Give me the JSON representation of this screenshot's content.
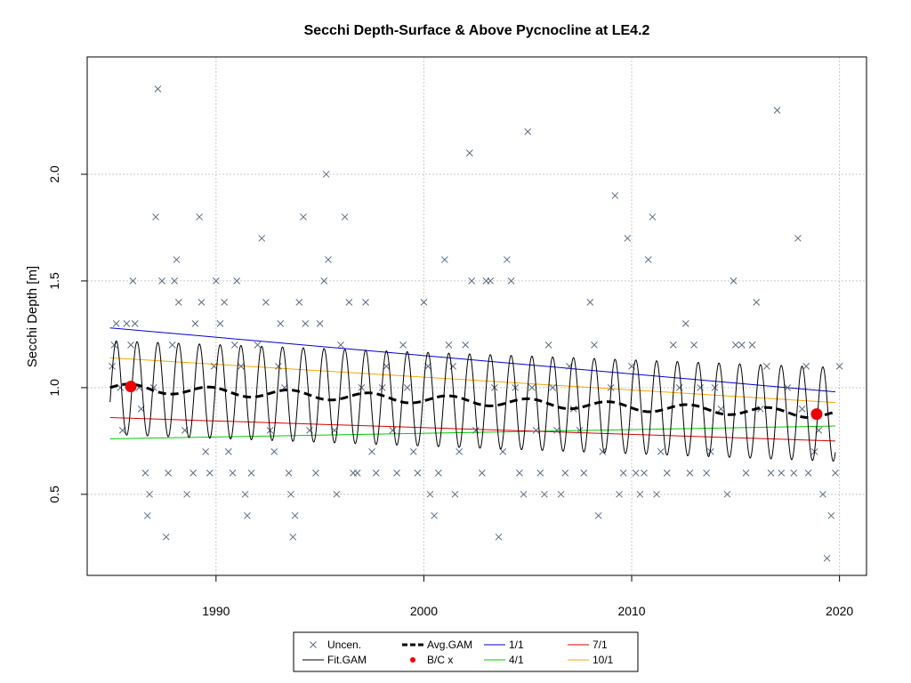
{
  "chart_data": {
    "type": "line",
    "title": "Secchi Depth-Surface & Above Pycnocline at LE4.2",
    "xlabel": "",
    "ylabel": "Secchi Depth [m]",
    "xlim": [
      1983.8,
      2021.3
    ],
    "ylim": [
      0.12,
      2.55
    ],
    "x_ticks": [
      "1990",
      "2000",
      "2010",
      "2020"
    ],
    "y_ticks": [
      "0.5",
      "1.0",
      "1.5",
      "2.0"
    ],
    "grid": true,
    "legend_position": "bottom-center",
    "legend": [
      {
        "label": "Uncen.",
        "kind": "cross",
        "color": "#5a6b82"
      },
      {
        "label": "Fit.GAM",
        "kind": "line",
        "color": "#000000"
      },
      {
        "label": "Avg.GAM",
        "kind": "dashed-thick",
        "color": "#000000"
      },
      {
        "label": "B/C x",
        "kind": "dot",
        "color": "#ee0000"
      },
      {
        "label": "1/1",
        "kind": "line",
        "color": "#0000cc"
      },
      {
        "label": "4/1",
        "kind": "line",
        "color": "#00cc00"
      },
      {
        "label": "7/1",
        "kind": "line",
        "color": "#dd0000"
      },
      {
        "label": "10/1",
        "kind": "line",
        "color": "#ffa500"
      }
    ],
    "observations": [
      [
        1985.0,
        1.1
      ],
      [
        1985.1,
        1.2
      ],
      [
        1985.2,
        1.3
      ],
      [
        1985.4,
        1.0
      ],
      [
        1985.5,
        0.8
      ],
      [
        1985.7,
        1.3
      ],
      [
        1985.9,
        1.2
      ],
      [
        1986.0,
        1.5
      ],
      [
        1986.1,
        1.3
      ],
      [
        1986.3,
        1.0
      ],
      [
        1986.4,
        0.9
      ],
      [
        1986.6,
        0.6
      ],
      [
        1986.7,
        0.4
      ],
      [
        1986.8,
        0.5
      ],
      [
        1987.0,
        1.0
      ],
      [
        1987.1,
        1.8
      ],
      [
        1987.2,
        2.4
      ],
      [
        1987.4,
        1.5
      ],
      [
        1987.6,
        0.3
      ],
      [
        1987.7,
        0.6
      ],
      [
        1987.9,
        1.2
      ],
      [
        1988.0,
        1.5
      ],
      [
        1988.1,
        1.6
      ],
      [
        1988.2,
        1.4
      ],
      [
        1988.5,
        0.8
      ],
      [
        1988.6,
        0.5
      ],
      [
        1988.9,
        0.6
      ],
      [
        1989.0,
        1.3
      ],
      [
        1989.2,
        1.8
      ],
      [
        1989.3,
        1.4
      ],
      [
        1989.5,
        0.7
      ],
      [
        1989.7,
        0.6
      ],
      [
        1989.9,
        1.1
      ],
      [
        1990.0,
        1.5
      ],
      [
        1990.2,
        1.3
      ],
      [
        1990.4,
        1.4
      ],
      [
        1990.6,
        0.7
      ],
      [
        1990.8,
        0.6
      ],
      [
        1990.9,
        1.2
      ],
      [
        1991.0,
        1.5
      ],
      [
        1991.2,
        1.1
      ],
      [
        1991.4,
        0.5
      ],
      [
        1991.5,
        0.4
      ],
      [
        1991.7,
        0.6
      ],
      [
        1992.0,
        1.2
      ],
      [
        1992.2,
        1.7
      ],
      [
        1992.4,
        1.4
      ],
      [
        1992.6,
        0.8
      ],
      [
        1992.8,
        0.7
      ],
      [
        1993.0,
        1.1
      ],
      [
        1993.1,
        1.3
      ],
      [
        1993.3,
        1.0
      ],
      [
        1993.5,
        0.6
      ],
      [
        1993.6,
        0.5
      ],
      [
        1993.7,
        0.3
      ],
      [
        1993.8,
        0.4
      ],
      [
        1994.0,
        1.4
      ],
      [
        1994.2,
        1.8
      ],
      [
        1994.3,
        1.3
      ],
      [
        1994.5,
        0.8
      ],
      [
        1994.8,
        0.6
      ],
      [
        1995.0,
        1.3
      ],
      [
        1995.2,
        1.5
      ],
      [
        1995.3,
        2.0
      ],
      [
        1995.4,
        1.6
      ],
      [
        1995.7,
        0.8
      ],
      [
        1995.8,
        0.5
      ],
      [
        1996.0,
        1.2
      ],
      [
        1996.2,
        1.8
      ],
      [
        1996.4,
        1.4
      ],
      [
        1996.6,
        0.6
      ],
      [
        1996.8,
        0.6
      ],
      [
        1997.0,
        1.0
      ],
      [
        1997.2,
        1.4
      ],
      [
        1997.5,
        0.7
      ],
      [
        1997.7,
        0.6
      ],
      [
        1998.0,
        1.0
      ],
      [
        1998.2,
        1.1
      ],
      [
        1998.5,
        0.8
      ],
      [
        1998.7,
        0.6
      ],
      [
        1999.0,
        1.2
      ],
      [
        1999.2,
        1.0
      ],
      [
        1999.5,
        0.7
      ],
      [
        1999.7,
        0.6
      ],
      [
        2000.0,
        1.4
      ],
      [
        2000.2,
        1.1
      ],
      [
        2000.3,
        0.5
      ],
      [
        2000.5,
        0.4
      ],
      [
        2000.7,
        0.6
      ],
      [
        2001.0,
        1.6
      ],
      [
        2001.2,
        1.2
      ],
      [
        2001.4,
        1.1
      ],
      [
        2001.5,
        0.5
      ],
      [
        2001.7,
        0.7
      ],
      [
        2002.0,
        1.2
      ],
      [
        2002.2,
        2.1
      ],
      [
        2002.3,
        1.5
      ],
      [
        2002.5,
        0.8
      ],
      [
        2002.8,
        0.6
      ],
      [
        2003.0,
        1.5
      ],
      [
        2003.2,
        1.5
      ],
      [
        2003.4,
        1.0
      ],
      [
        2003.6,
        0.3
      ],
      [
        2003.8,
        0.7
      ],
      [
        2004.0,
        1.6
      ],
      [
        2004.2,
        1.5
      ],
      [
        2004.4,
        1.0
      ],
      [
        2004.6,
        0.6
      ],
      [
        2004.8,
        0.5
      ],
      [
        2005.0,
        2.2
      ],
      [
        2005.2,
        1.0
      ],
      [
        2005.4,
        0.8
      ],
      [
        2005.6,
        0.6
      ],
      [
        2005.8,
        0.5
      ],
      [
        2006.0,
        1.2
      ],
      [
        2006.2,
        1.0
      ],
      [
        2006.4,
        0.8
      ],
      [
        2006.6,
        0.5
      ],
      [
        2006.8,
        0.6
      ],
      [
        2007.0,
        1.1
      ],
      [
        2007.2,
        0.9
      ],
      [
        2007.5,
        0.8
      ],
      [
        2007.7,
        0.6
      ],
      [
        2008.0,
        1.4
      ],
      [
        2008.2,
        1.2
      ],
      [
        2008.4,
        0.4
      ],
      [
        2008.6,
        0.7
      ],
      [
        2009.0,
        1.0
      ],
      [
        2009.2,
        1.9
      ],
      [
        2009.4,
        0.5
      ],
      [
        2009.6,
        0.6
      ],
      [
        2009.8,
        1.7
      ],
      [
        2010.0,
        1.1
      ],
      [
        2010.2,
        0.6
      ],
      [
        2010.4,
        0.5
      ],
      [
        2010.6,
        0.6
      ],
      [
        2010.8,
        1.6
      ],
      [
        2011.0,
        1.8
      ],
      [
        2011.2,
        0.5
      ],
      [
        2011.4,
        0.7
      ],
      [
        2011.7,
        0.6
      ],
      [
        2012.0,
        1.2
      ],
      [
        2012.3,
        1.0
      ],
      [
        2012.6,
        1.3
      ],
      [
        2012.8,
        0.6
      ],
      [
        2013.0,
        1.2
      ],
      [
        2013.3,
        1.0
      ],
      [
        2013.6,
        0.6
      ],
      [
        2013.8,
        0.7
      ],
      [
        2014.0,
        1.0
      ],
      [
        2014.3,
        0.9
      ],
      [
        2014.6,
        0.5
      ],
      [
        2014.9,
        1.5
      ],
      [
        2015.0,
        1.2
      ],
      [
        2015.3,
        1.2
      ],
      [
        2015.5,
        0.6
      ],
      [
        2015.8,
        1.2
      ],
      [
        2016.0,
        1.4
      ],
      [
        2016.2,
        0.9
      ],
      [
        2016.5,
        1.1
      ],
      [
        2016.7,
        0.6
      ],
      [
        2017.0,
        2.3
      ],
      [
        2017.2,
        0.6
      ],
      [
        2017.5,
        1.0
      ],
      [
        2017.8,
        0.6
      ],
      [
        2018.0,
        1.7
      ],
      [
        2018.2,
        0.9
      ],
      [
        2018.4,
        1.1
      ],
      [
        2018.5,
        0.6
      ],
      [
        2018.8,
        0.7
      ],
      [
        2019.0,
        0.8
      ],
      [
        2019.2,
        0.5
      ],
      [
        2019.4,
        0.2
      ],
      [
        2019.6,
        0.4
      ],
      [
        2019.8,
        0.6
      ],
      [
        2020.0,
        1.1
      ]
    ],
    "avg_gam": {
      "x": [
        1984.9,
        2019.8
      ],
      "y": [
        1.0,
        0.875
      ],
      "wiggle": 0.02
    },
    "fit_gam": {
      "x_start": 1984.9,
      "x_end": 2019.8,
      "period_years": 1.0,
      "mean_start": 1.0,
      "mean_end": 0.875,
      "amplitude": 0.22
    },
    "seasonal_lines": [
      {
        "name": "1/1",
        "color": "#0000cc",
        "x": [
          1984.9,
          2019.8
        ],
        "y": [
          1.28,
          0.98
        ]
      },
      {
        "name": "4/1",
        "color": "#00cc00",
        "x": [
          1984.9,
          2019.8
        ],
        "y": [
          0.76,
          0.82
        ]
      },
      {
        "name": "7/1",
        "color": "#dd0000",
        "x": [
          1984.9,
          2019.8
        ],
        "y": [
          0.86,
          0.75
        ]
      },
      {
        "name": "10/1",
        "color": "#ffa500",
        "x": [
          1984.9,
          2019.8
        ],
        "y": [
          1.14,
          0.93
        ]
      }
    ],
    "bc_points": [
      {
        "x": 1985.9,
        "y": 1.005
      },
      {
        "x": 2018.9,
        "y": 0.876
      }
    ]
  }
}
